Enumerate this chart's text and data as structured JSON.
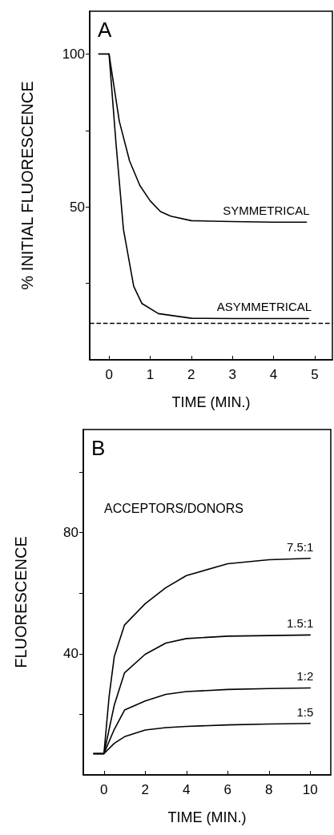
{
  "chart_data": [
    {
      "type": "line",
      "xlabel": "TIME (MIN.)",
      "ylabel": "% INITIAL FLUORESCENCE",
      "annotations": [
        "A"
      ],
      "xlim": [
        -0.47,
        5.43
      ],
      "xticks": [
        0,
        1,
        2,
        3,
        4,
        5
      ],
      "ylim": [
        0,
        114
      ],
      "yticks": [
        {
          "value": 25,
          "label": null
        },
        50,
        {
          "value": 75,
          "label": null
        },
        100
      ],
      "marker": "none",
      "line_style": "solid",
      "legend": false,
      "grid": false,
      "ref_lines": [
        {
          "axis": "y",
          "value": 12,
          "line_style": "dashed",
          "color": "#000000"
        }
      ],
      "series": [
        {
          "name": "SYMMETRICAL",
          "color": "#000000",
          "x": [
            -0.25,
            0,
            0.25,
            0.5,
            0.75,
            1,
            1.25,
            1.5,
            2,
            3,
            4,
            4.8
          ],
          "values": [
            100,
            100,
            78,
            65,
            57,
            52,
            48.5,
            47,
            45.5,
            45.2,
            45,
            45
          ]
        },
        {
          "name": "ASYMMETRICAL",
          "color": "#000000",
          "x": [
            0,
            0.17,
            0.35,
            0.6,
            0.8,
            1.2,
            2,
            3,
            4,
            4.85
          ],
          "values": [
            100,
            70.7,
            42.7,
            24,
            18.4,
            15.1,
            13.6,
            13.5,
            13.5,
            13.5
          ]
        }
      ]
    },
    {
      "type": "line",
      "xlabel": "TIME (MIN.)",
      "ylabel": "FLUORESCENCE",
      "annotations": [
        "B",
        "ACCEPTORS/DONORS"
      ],
      "xlim": [
        -1,
        11
      ],
      "xticks": [
        0,
        2,
        4,
        6,
        8,
        10
      ],
      "ylim": [
        0,
        114
      ],
      "yticks": [
        {
          "value": 20,
          "label": null
        },
        40,
        {
          "value": 60,
          "label": null
        },
        80,
        {
          "value": 100,
          "label": null
        }
      ],
      "marker": "none",
      "line_style": "solid",
      "legend": false,
      "grid": false,
      "series": [
        {
          "name": "7.5:1",
          "color": "#000000",
          "x": [
            -0.5,
            0,
            0.25,
            0.5,
            1,
            2,
            3,
            4,
            6,
            8,
            10
          ],
          "values": [
            7,
            7,
            25.8,
            39,
            49.5,
            56.5,
            61.8,
            65.8,
            69.7,
            71,
            71.5
          ]
        },
        {
          "name": "1.5:1",
          "color": "#000000",
          "x": [
            -0.5,
            0,
            0.5,
            1,
            2,
            3,
            4,
            6,
            8,
            10
          ],
          "values": [
            7,
            7,
            23,
            33.7,
            39.8,
            43.5,
            45,
            45.8,
            46,
            46.2
          ]
        },
        {
          "name": "1:2",
          "color": "#000000",
          "x": [
            -0.5,
            0,
            0.5,
            1,
            2,
            3,
            4,
            6,
            8,
            10
          ],
          "values": [
            7,
            7,
            15,
            21.4,
            24.4,
            26.6,
            27.5,
            28.2,
            28.5,
            28.7
          ]
        },
        {
          "name": "1:5",
          "color": "#000000",
          "x": [
            -0.5,
            0,
            0.5,
            1,
            2,
            3,
            4,
            6,
            8,
            10
          ],
          "values": [
            7,
            7,
            10.4,
            12.6,
            14.8,
            15.6,
            16,
            16.5,
            16.8,
            17
          ]
        }
      ]
    }
  ]
}
